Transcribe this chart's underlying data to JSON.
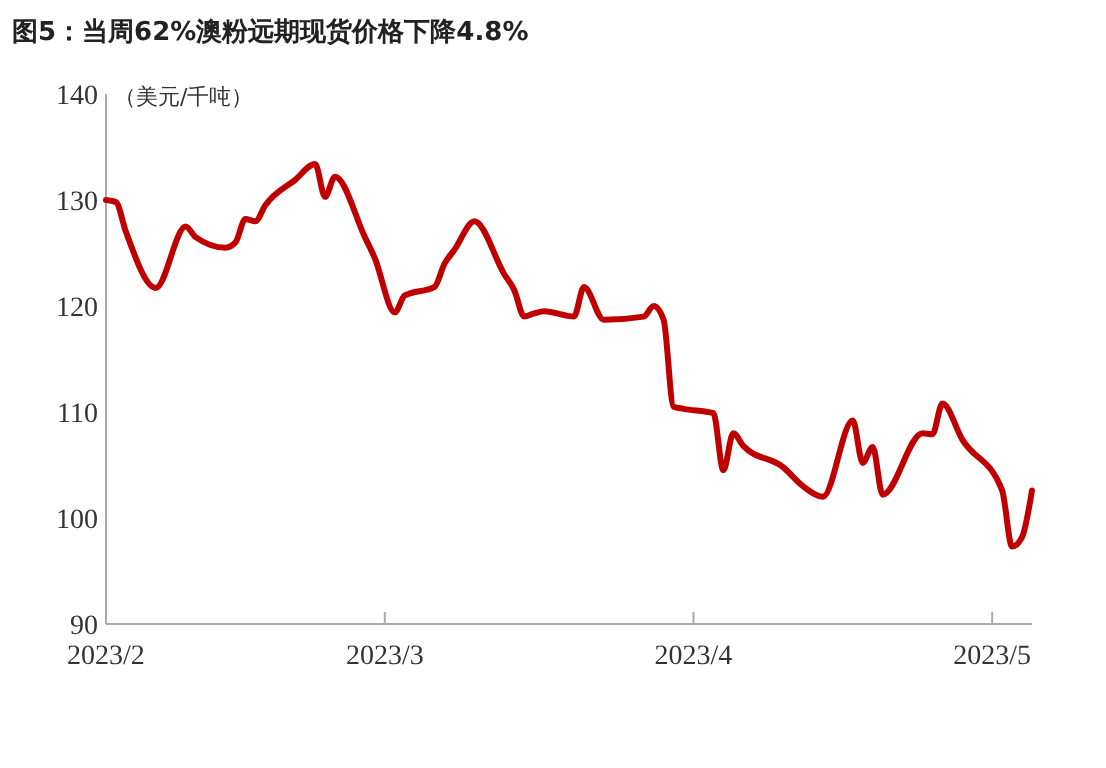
{
  "chart_data": {
    "type": "line",
    "title": "图5：当周62%澳粉远期现货价格下降4.8%",
    "ylabel": "（美元/千吨）",
    "x": [
      "2023-02-01",
      "2023-02-02",
      "2023-02-03",
      "2023-02-06",
      "2023-02-09",
      "2023-02-10",
      "2023-02-13",
      "2023-02-14",
      "2023-02-15",
      "2023-02-16",
      "2023-02-17",
      "2023-02-20",
      "2023-02-22",
      "2023-02-23",
      "2023-02-24",
      "2023-02-27",
      "2023-02-28",
      "2023-03-02",
      "2023-03-03",
      "2023-03-06",
      "2023-03-07",
      "2023-03-08",
      "2023-03-10",
      "2023-03-13",
      "2023-03-14",
      "2023-03-15",
      "2023-03-16",
      "2023-03-17",
      "2023-03-20",
      "2023-03-21",
      "2023-03-23",
      "2023-03-27",
      "2023-03-28",
      "2023-03-29",
      "2023-03-30",
      "2023-03-31",
      "2023-04-03",
      "2023-04-04",
      "2023-04-05",
      "2023-04-06",
      "2023-04-10",
      "2023-04-12",
      "2023-04-14",
      "2023-04-17",
      "2023-04-18",
      "2023-04-19",
      "2023-04-20",
      "2023-04-24",
      "2023-04-25",
      "2023-04-26",
      "2023-04-28",
      "2023-05-02",
      "2023-05-03",
      "2023-05-04",
      "2023-05-05"
    ],
    "series": [
      {
        "color": "#c00000",
        "values": [
          130,
          129.8,
          127,
          121.7,
          127.5,
          126.5,
          125.5,
          126,
          128.2,
          128,
          129.5,
          131.9,
          133.4,
          130.3,
          132.2,
          126.5,
          124.5,
          119.4,
          121,
          121.8,
          124,
          125.3,
          128,
          123,
          121.5,
          119,
          119.3,
          119.5,
          119,
          121.8,
          118.7,
          119,
          120,
          118.7,
          110.5,
          110.3,
          109.9,
          104.5,
          108,
          106.8,
          104.8,
          103,
          102,
          109.2,
          105.2,
          106.7,
          102.2,
          108,
          107.9,
          110.8,
          107.4,
          102.6,
          97.3,
          98.2,
          102.6
        ]
      }
    ],
    "xlim": [
      "2023-02-01",
      "2023-05-05"
    ],
    "xticks": [
      {
        "value": "2023-02-01",
        "label": "2023/2"
      },
      {
        "value": "2023-03-01",
        "label": "2023/3"
      },
      {
        "value": "2023-04-01",
        "label": "2023/4"
      },
      {
        "value": "2023-05-01",
        "label": "2023/5"
      }
    ],
    "ylim": [
      90,
      140
    ],
    "yticks": [
      90,
      100,
      110,
      120,
      130,
      140
    ],
    "grid": false,
    "marker": "none",
    "line_style": "solid"
  }
}
